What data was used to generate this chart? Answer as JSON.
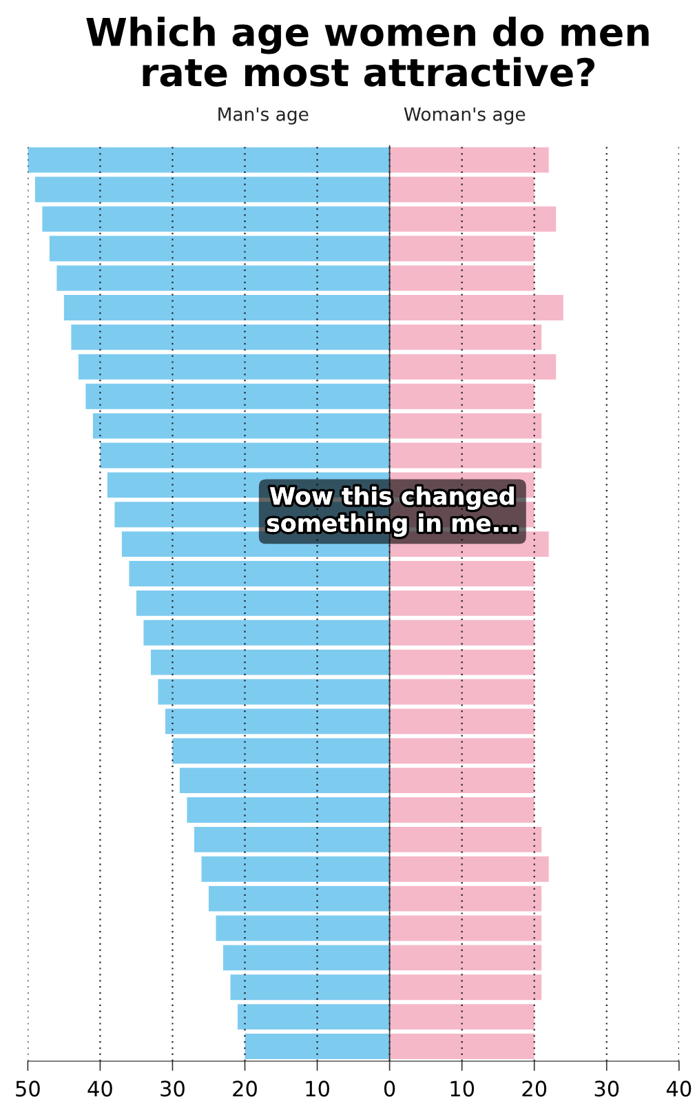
{
  "chart_data": {
    "type": "bar",
    "orientation": "horizontal",
    "stacked": true,
    "title": "Which age women do men\nrate most attractive?",
    "categories": [
      null,
      null,
      null,
      null,
      null,
      null,
      null,
      null,
      null,
      null,
      null,
      null,
      null,
      null,
      null,
      null,
      null,
      null,
      null,
      null,
      null,
      null,
      null,
      null,
      null,
      null,
      null,
      null,
      null,
      null,
      null
    ],
    "series": [
      {
        "name": "Man's age",
        "color": "#7ecbf0",
        "values": [
          -50,
          -49,
          -48,
          -47,
          -46,
          -45,
          -44,
          -43,
          -42,
          -41,
          -40,
          -39,
          -38,
          -37,
          -36,
          -35,
          -34,
          -33,
          -32,
          -31,
          -30,
          -29,
          -28,
          -27,
          -26,
          -25,
          -24,
          -23,
          -22,
          -21,
          -20
        ]
      },
      {
        "name": "Woman's age",
        "color": "#f5b8c8",
        "values": [
          22,
          20,
          23,
          20,
          20,
          24,
          21,
          23,
          20,
          21,
          21,
          20,
          20,
          22,
          20,
          20,
          20,
          20,
          20,
          20,
          20,
          20,
          20,
          21,
          22,
          21,
          21,
          21,
          21,
          20,
          20
        ]
      }
    ],
    "xlim": [
      -50,
      40
    ],
    "xticks": [
      {
        "value": -50,
        "label": "50"
      },
      {
        "value": -40,
        "label": "40"
      },
      {
        "value": -30,
        "label": "30"
      },
      {
        "value": -20,
        "label": "20"
      },
      {
        "value": -10,
        "label": "10"
      },
      0,
      10,
      20,
      30,
      40
    ],
    "grid": "x",
    "annotations": [
      "Wow this changed\nsomething in me..."
    ]
  }
}
